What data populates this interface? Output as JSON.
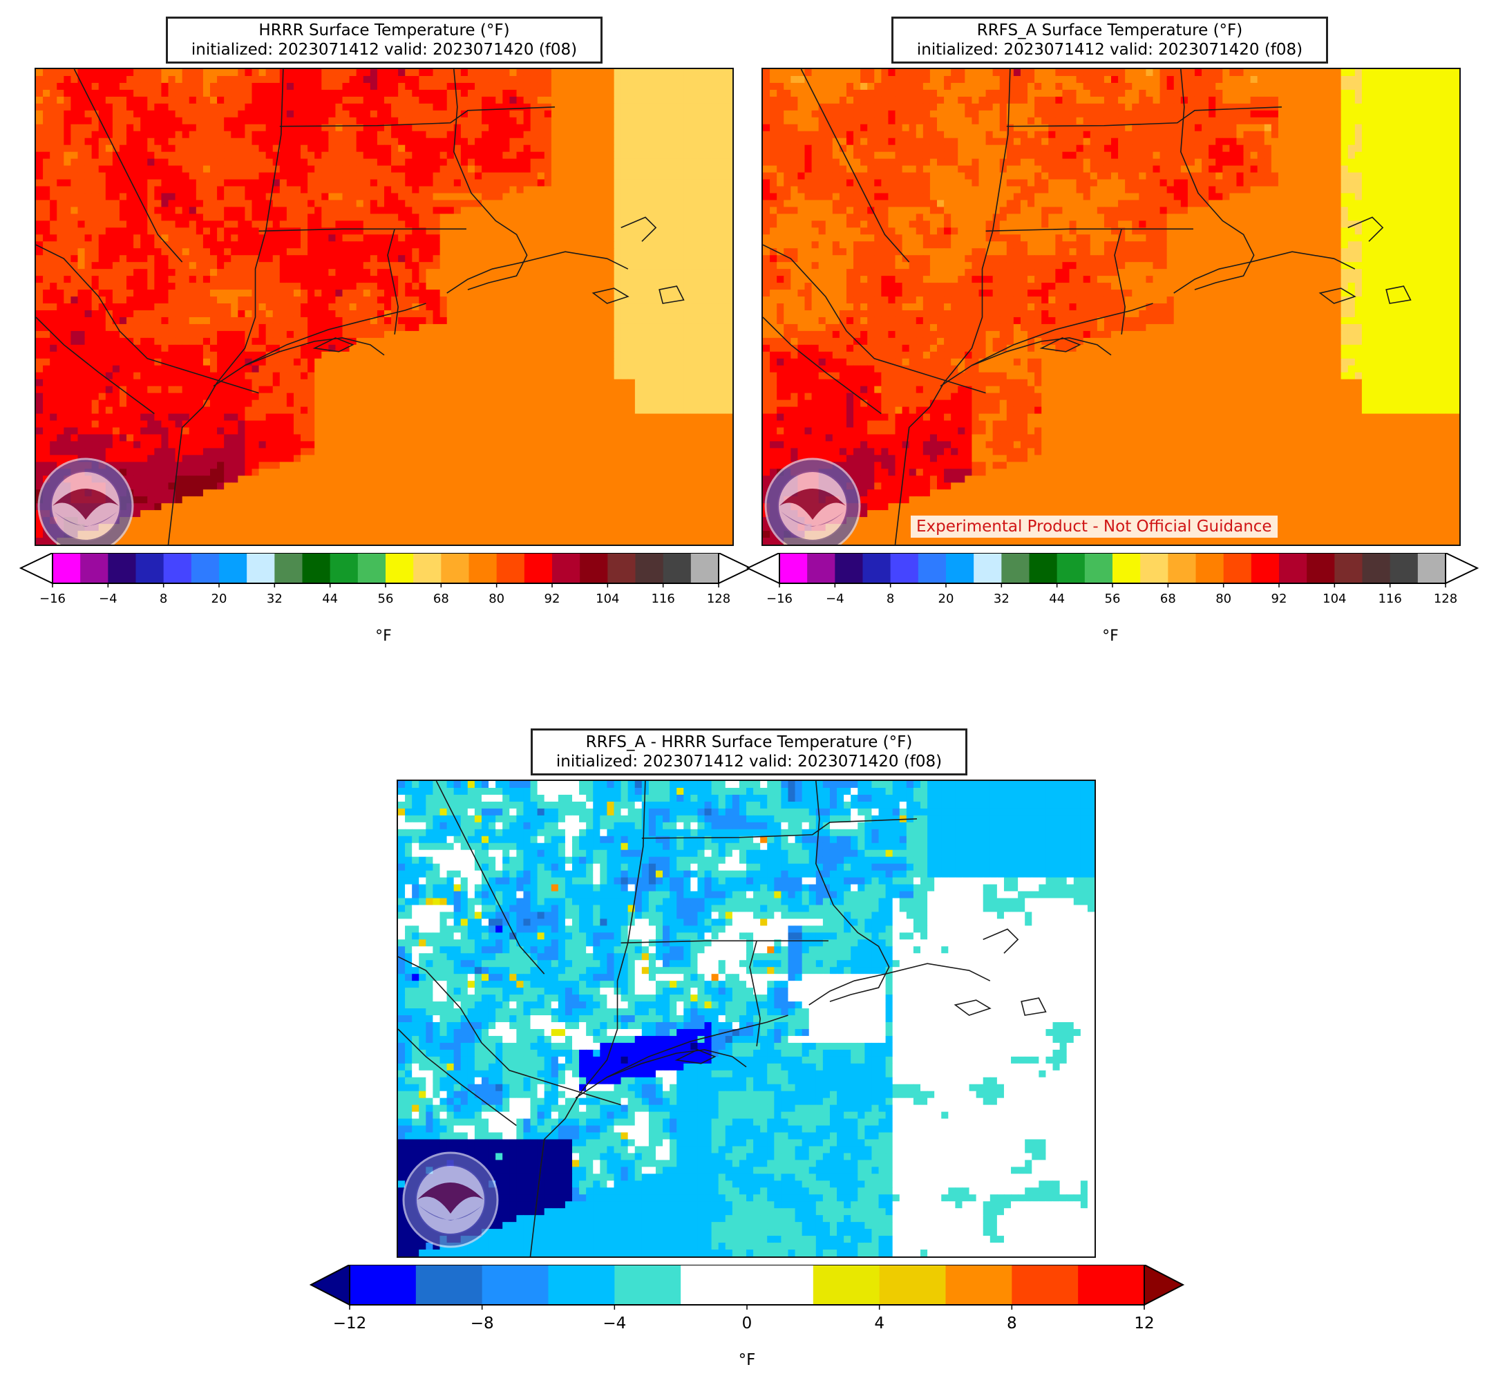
{
  "panels": [
    {
      "id": "hrrr",
      "title_line1": "HRRR Surface Temperature (°F)",
      "title_line2": "initialized: 2023071412 valid: 2023071420 (f08)"
    },
    {
      "id": "rrfs",
      "title_line1": "RRFS_A Surface Temperature (°F)",
      "title_line2": "initialized: 2023071412 valid: 2023071420 (f08)",
      "disclaimer": "Experimental Product - Not Official Guidance"
    },
    {
      "id": "diff",
      "title_line1": "RRFS_A - HRRR Surface Temperature (°F)",
      "title_line2": "initialized: 2023071412 valid: 2023071420 (f08)"
    }
  ],
  "temp_colorbar": {
    "unit": "°F",
    "ticks": [
      -16,
      -4,
      8,
      20,
      32,
      44,
      56,
      68,
      80,
      92,
      104,
      116,
      128
    ],
    "tick_labels": [
      "−16",
      "−4",
      "8",
      "20",
      "32",
      "44",
      "56",
      "68",
      "80",
      "92",
      "104",
      "116",
      "128"
    ],
    "min": -16,
    "max": 128,
    "step": 6,
    "under_color": "#ffffff",
    "over_color": "#ffffff",
    "colors": [
      "#ff00ff",
      "#9b0a9f",
      "#2c0477",
      "#2222b5",
      "#4545ff",
      "#2e7bff",
      "#06a0ff",
      "#c8ecff",
      "#4e8b4f",
      "#006400",
      "#139a29",
      "#45bd5a",
      "#f8f800",
      "#ffd75e",
      "#ffab27",
      "#ff8000",
      "#ff4a00",
      "#ff0000",
      "#b0002c",
      "#8a0010",
      "#7a2b2b",
      "#4f3333",
      "#444444",
      "#b0b0b0"
    ]
  },
  "diff_colorbar": {
    "unit": "°F",
    "ticks": [
      -12,
      -8,
      -4,
      0,
      4,
      8,
      12
    ],
    "tick_labels": [
      "−12",
      "−8",
      "−4",
      "0",
      "4",
      "8",
      "12"
    ],
    "min": -12,
    "max": 12,
    "step": 2,
    "under_color": "#00008b",
    "over_color": "#8b0000",
    "colors": [
      "#0000ff",
      "#1e6fce",
      "#1e90ff",
      "#00bfff",
      "#40e0d0",
      "#ffffff",
      "#ffffff",
      "#e8e800",
      "#eecc00",
      "#ff8c00",
      "#ff4500",
      "#ff0000"
    ]
  }
}
